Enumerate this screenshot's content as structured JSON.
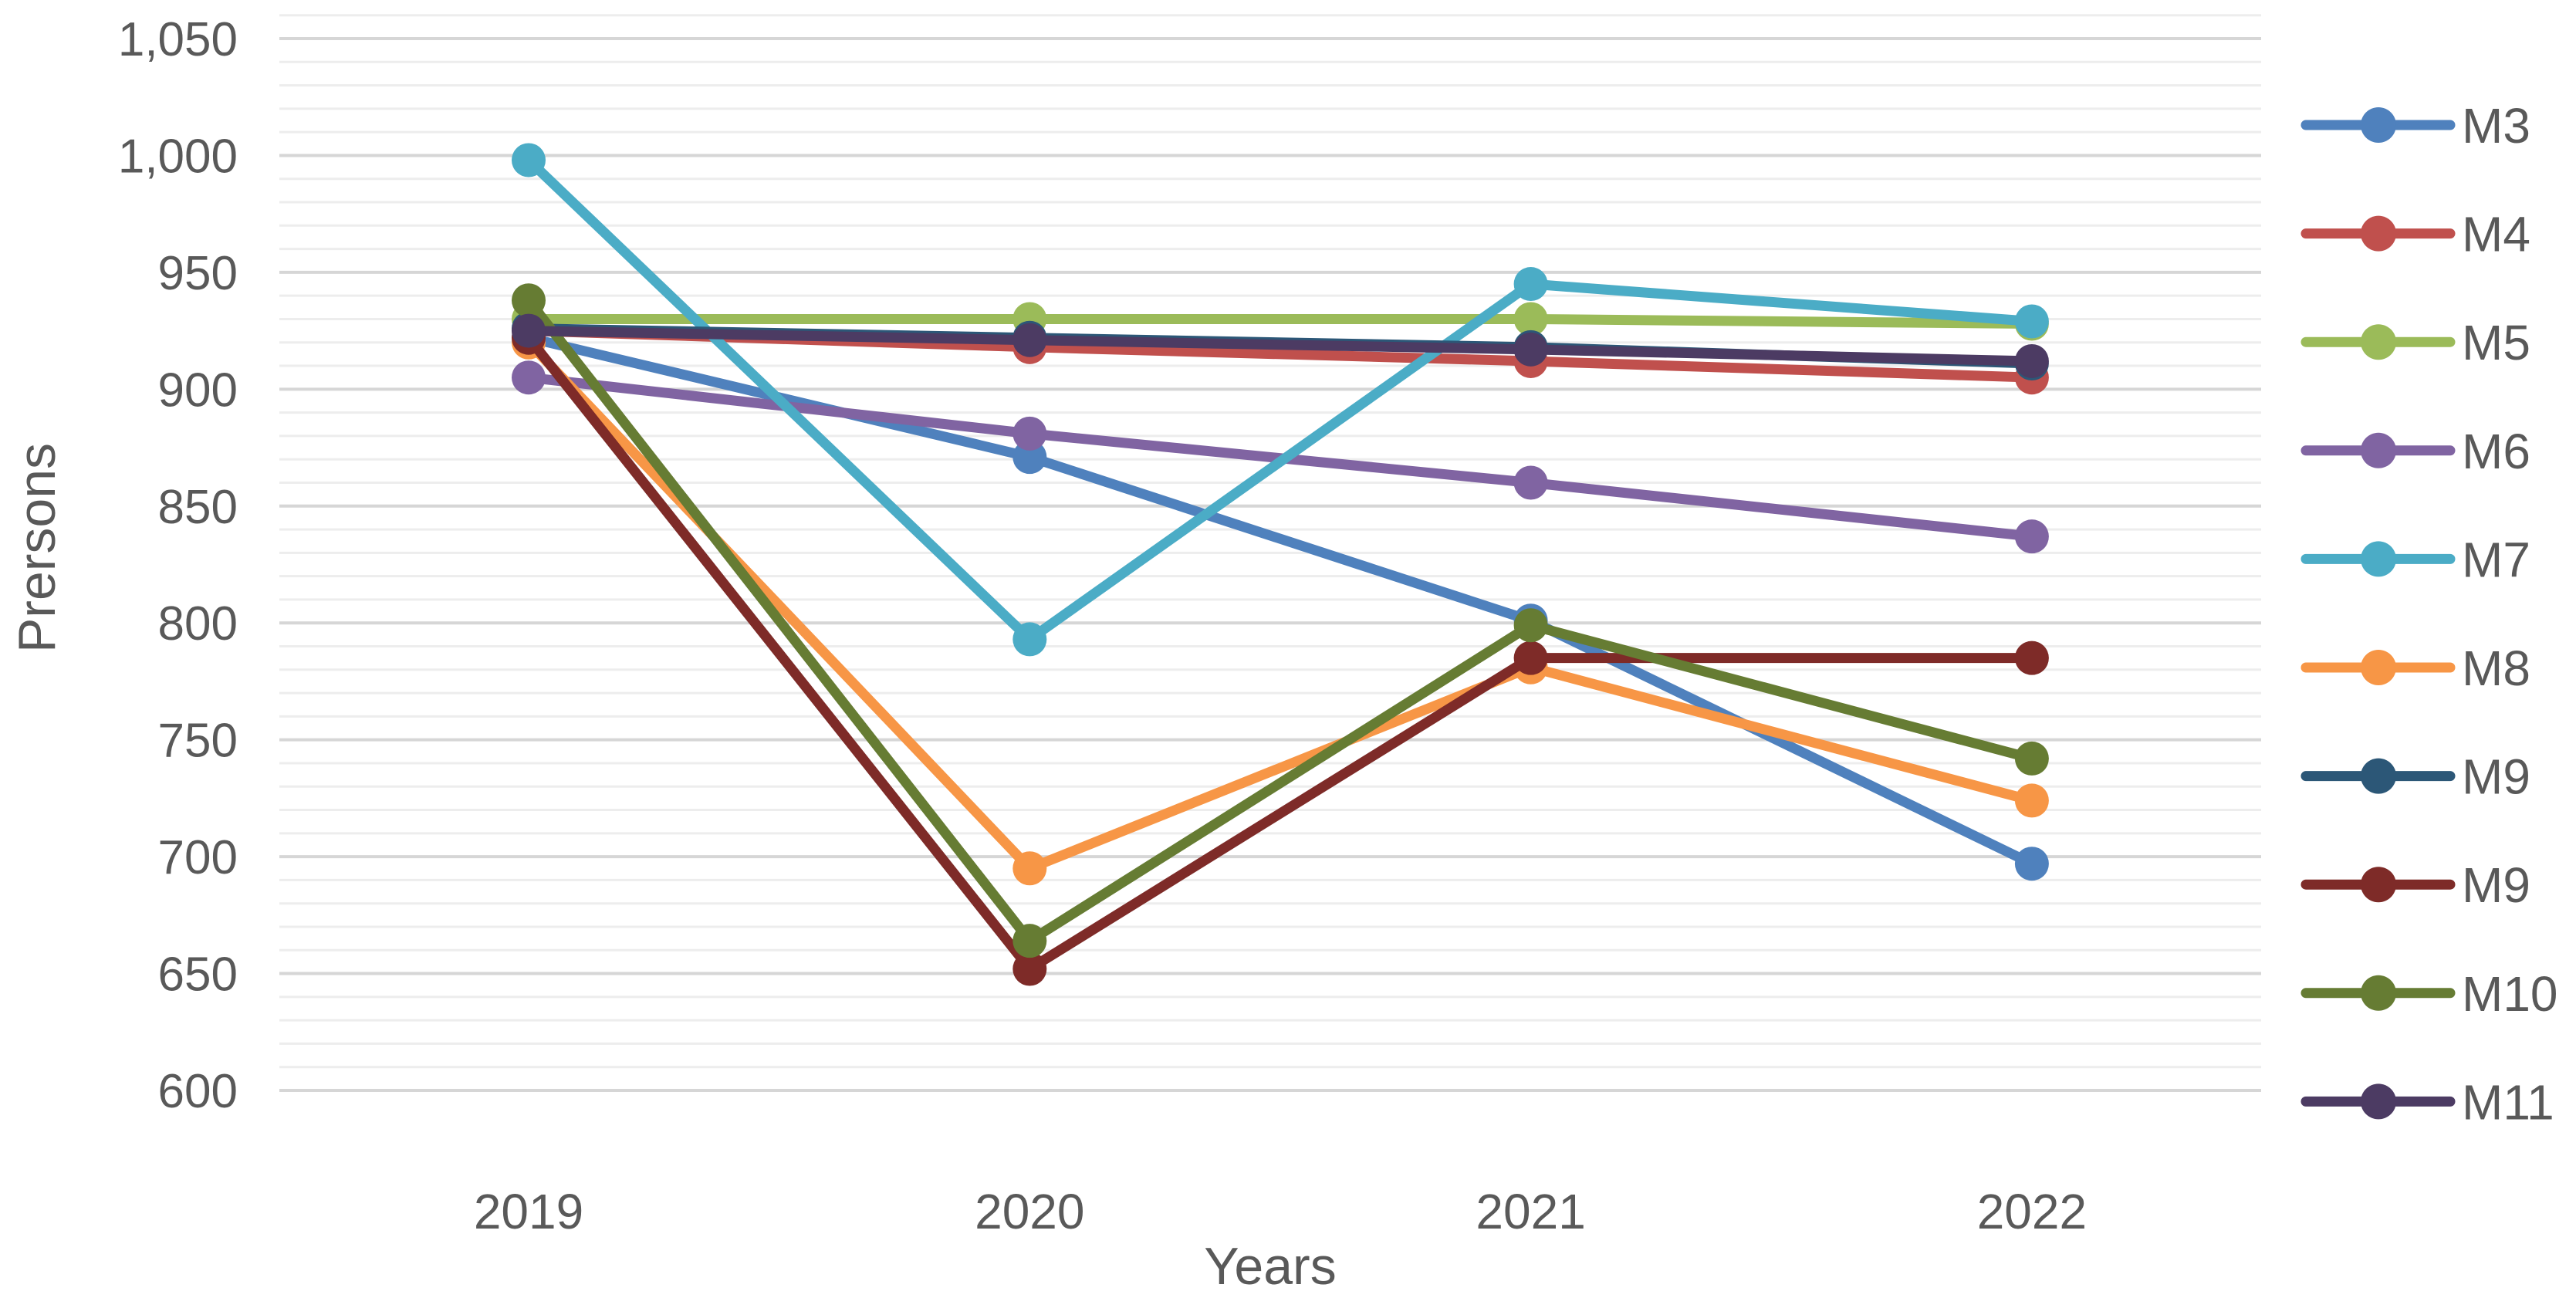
{
  "chart_data": {
    "type": "line",
    "title": "",
    "xlabel": "Years",
    "ylabel": "Prersons",
    "categories": [
      "2019",
      "2020",
      "2021",
      "2022"
    ],
    "series": [
      {
        "name": "M3",
        "color": "#4F81BD",
        "values": [
          922,
          871,
          801,
          697
        ]
      },
      {
        "name": "M4",
        "color": "#C0504D",
        "values": [
          925,
          918,
          912,
          905
        ]
      },
      {
        "name": "M5",
        "color": "#9BBB59",
        "values": [
          930,
          930,
          930,
          928
        ]
      },
      {
        "name": "M6",
        "color": "#8064A2",
        "values": [
          905,
          881,
          860,
          837
        ]
      },
      {
        "name": "M7",
        "color": "#4BACC6",
        "values": [
          998,
          793,
          945,
          929
        ]
      },
      {
        "name": "M8",
        "color": "#F79646",
        "values": [
          920,
          695,
          781,
          724
        ]
      },
      {
        "name": "M9",
        "color": "#2C5777",
        "values": [
          926,
          922,
          918,
          911
        ]
      },
      {
        "name": "M9",
        "color": "#7E2B28",
        "values": [
          922,
          652,
          785,
          785
        ]
      },
      {
        "name": "M10",
        "color": "#667C33",
        "values": [
          938,
          664,
          799,
          742
        ]
      },
      {
        "name": "M11",
        "color": "#4C3B63",
        "values": [
          925,
          921,
          917,
          912
        ]
      }
    ],
    "ylim": [
      600,
      1050
    ],
    "y_ticks": [
      "600",
      "650",
      "700",
      "750",
      "800",
      "850",
      "900",
      "950",
      "1,000",
      "1,050"
    ],
    "y_tick_values": [
      600,
      650,
      700,
      750,
      800,
      850,
      900,
      950,
      1000,
      1050
    ],
    "grid": {
      "minor_step": 10,
      "major_step": 50,
      "minor_color": "#EDEDED",
      "major_color": "#D6D6D6",
      "grid_on": true
    },
    "legend_position": "right",
    "text_color": "#595959"
  }
}
